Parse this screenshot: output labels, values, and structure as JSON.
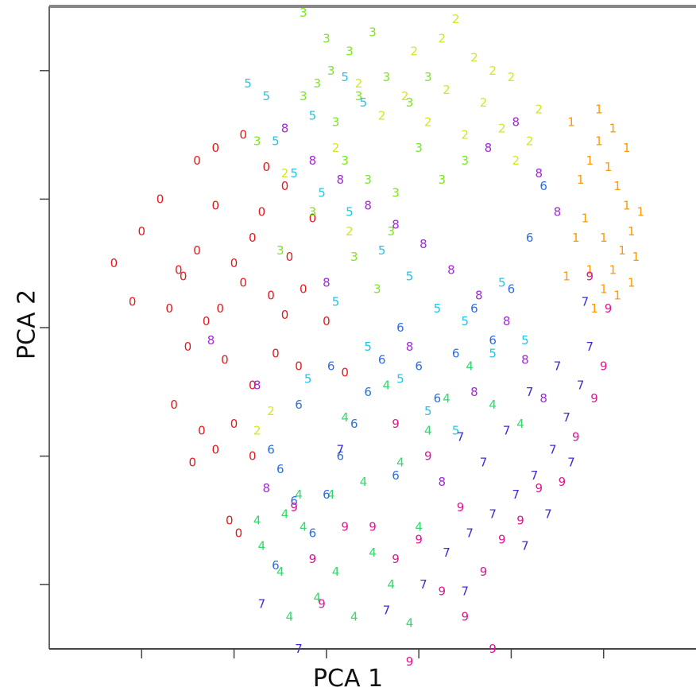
{
  "chart_data": {
    "type": "scatter",
    "xlabel": "PCA 1",
    "ylabel": "PCA 2",
    "xlim": [
      -7,
      7
    ],
    "ylim": [
      -5,
      5
    ],
    "x_ticks": [
      -5,
      -3,
      -1,
      1,
      3,
      5
    ],
    "y_ticks": [
      -4,
      -2,
      0,
      2,
      4
    ],
    "tick_labels_shown": false,
    "grid": false,
    "legend": "none",
    "marker": "digit glyph",
    "series": [
      {
        "name": "0",
        "color": "#e31a1c",
        "points": [
          [
            -5.6,
            1
          ],
          [
            -5,
            1.5
          ],
          [
            -4.6,
            2
          ],
          [
            -4.2,
            0.9
          ],
          [
            -3.8,
            1.2
          ],
          [
            -3.4,
            1.9
          ],
          [
            -3,
            1
          ],
          [
            -2.6,
            1.4
          ],
          [
            -2.2,
            0.5
          ],
          [
            -1.8,
            1.1
          ],
          [
            -1.5,
            0.6
          ],
          [
            -5.2,
            0.4
          ],
          [
            -4.4,
            0.3
          ],
          [
            -3.6,
            0.1
          ],
          [
            -2.8,
            0.7
          ],
          [
            -2.4,
            1.8
          ],
          [
            -3.2,
            -0.5
          ],
          [
            -4,
            -0.3
          ],
          [
            -4.3,
            -1.2
          ],
          [
            -3.7,
            -1.6
          ],
          [
            -3,
            -1.5
          ],
          [
            -2.6,
            -0.9
          ],
          [
            -2.1,
            -0.4
          ],
          [
            -1.6,
            -0.6
          ],
          [
            -3.8,
            2.6
          ],
          [
            -3.4,
            2.8
          ],
          [
            -2.8,
            3
          ],
          [
            -2.3,
            2.5
          ],
          [
            -1.9,
            2.2
          ],
          [
            -3.9,
            -2.1
          ],
          [
            -3.4,
            -1.9
          ],
          [
            -3.1,
            -3
          ],
          [
            -2.9,
            -3.2
          ],
          [
            -4.1,
            0.8
          ],
          [
            -1.9,
            0.2
          ],
          [
            -1.3,
            1.7
          ],
          [
            -1,
            0.1
          ],
          [
            -0.6,
            -0.7
          ],
          [
            -2.6,
            -2
          ],
          [
            -3.3,
            0.3
          ]
        ]
      },
      {
        "name": "1",
        "color": "#ff9900",
        "points": [
          [
            4.5,
            2.3
          ],
          [
            4.7,
            2.6
          ],
          [
            4.9,
            2.9
          ],
          [
            5.1,
            2.5
          ],
          [
            5.3,
            2.2
          ],
          [
            5.5,
            1.9
          ],
          [
            5.6,
            1.5
          ],
          [
            5.4,
            1.2
          ],
          [
            5.2,
            0.9
          ],
          [
            5,
            0.6
          ],
          [
            4.8,
            0.3
          ],
          [
            5.6,
            0.7
          ],
          [
            5.7,
            1.1
          ],
          [
            4.6,
            1.7
          ],
          [
            4.4,
            1.4
          ],
          [
            4.7,
            0.9
          ],
          [
            5.3,
            0.5
          ],
          [
            5.8,
            1.8
          ],
          [
            4.3,
            3.2
          ],
          [
            4.9,
            3.4
          ],
          [
            5.2,
            3.1
          ],
          [
            5,
            1.4
          ],
          [
            4.2,
            0.8
          ],
          [
            5.5,
            2.8
          ]
        ]
      },
      {
        "name": "2",
        "color": "#d4e71c",
        "points": [
          [
            -0.3,
            3.8
          ],
          [
            0.2,
            3.3
          ],
          [
            0.7,
            3.6
          ],
          [
            1.2,
            3.2
          ],
          [
            1.6,
            3.7
          ],
          [
            2,
            3
          ],
          [
            2.4,
            3.5
          ],
          [
            2.8,
            3.1
          ],
          [
            3.1,
            2.6
          ],
          [
            3.4,
            2.9
          ],
          [
            0.9,
            4.3
          ],
          [
            1.5,
            4.5
          ],
          [
            2.2,
            4.2
          ],
          [
            2.6,
            4
          ],
          [
            -0.8,
            2.8
          ],
          [
            -1.9,
            2.4
          ],
          [
            -2.2,
            -1.3
          ],
          [
            -2.5,
            -1.6
          ],
          [
            -0.5,
            1.5
          ],
          [
            3,
            3.9
          ],
          [
            1.8,
            4.8
          ],
          [
            3.6,
            3.4
          ]
        ]
      },
      {
        "name": "3",
        "color": "#7be81c",
        "points": [
          [
            -2.5,
            2.9
          ],
          [
            -1.5,
            4.9
          ],
          [
            -1,
            4.5
          ],
          [
            -0.5,
            4.3
          ],
          [
            0,
            4.6
          ],
          [
            -1.5,
            3.6
          ],
          [
            -1.2,
            3.8
          ],
          [
            -0.8,
            3.2
          ],
          [
            -0.3,
            3.6
          ],
          [
            0.3,
            3.9
          ],
          [
            0.8,
            3.5
          ],
          [
            1.2,
            3.9
          ],
          [
            -0.6,
            2.6
          ],
          [
            -0.1,
            2.3
          ],
          [
            0.5,
            2.1
          ],
          [
            1,
            2.8
          ],
          [
            -1.3,
            1.8
          ],
          [
            -0.4,
            1.1
          ],
          [
            0.4,
            1.5
          ],
          [
            1.5,
            2.3
          ],
          [
            -0.9,
            4
          ],
          [
            2,
            2.6
          ],
          [
            -2,
            1.2
          ],
          [
            0.1,
            0.6
          ]
        ]
      },
      {
        "name": "4",
        "color": "#33d96b",
        "points": [
          [
            -2.5,
            -3
          ],
          [
            -2.4,
            -3.4
          ],
          [
            -2,
            -3.8
          ],
          [
            -1.8,
            -4.5
          ],
          [
            -1.5,
            -3.1
          ],
          [
            -1.2,
            -4.2
          ],
          [
            -0.8,
            -3.8
          ],
          [
            -0.4,
            -4.5
          ],
          [
            0,
            -3.5
          ],
          [
            0.4,
            -4
          ],
          [
            0.8,
            -4.6
          ],
          [
            -1.6,
            -2.6
          ],
          [
            -0.9,
            -2.6
          ],
          [
            -0.2,
            -2.4
          ],
          [
            0.6,
            -2.1
          ],
          [
            1.2,
            -1.6
          ],
          [
            1.6,
            -1.1
          ],
          [
            2.1,
            -0.6
          ],
          [
            2.6,
            -1.2
          ],
          [
            3.2,
            -1.5
          ],
          [
            -0.6,
            -1.4
          ],
          [
            0.3,
            -0.9
          ],
          [
            -1.9,
            -2.9
          ],
          [
            1,
            -3.1
          ]
        ]
      },
      {
        "name": "5",
        "color": "#22c4e8",
        "points": [
          [
            -2.7,
            3.8
          ],
          [
            -2.3,
            3.6
          ],
          [
            -1.3,
            3.3
          ],
          [
            -0.6,
            3.9
          ],
          [
            -0.2,
            3.5
          ],
          [
            -2.1,
            2.9
          ],
          [
            -1.7,
            2.4
          ],
          [
            -1.1,
            2.1
          ],
          [
            -0.5,
            1.8
          ],
          [
            0.2,
            1.2
          ],
          [
            0.8,
            0.8
          ],
          [
            1.4,
            0.3
          ],
          [
            2,
            0.1
          ],
          [
            2.6,
            -0.4
          ],
          [
            -0.8,
            0.4
          ],
          [
            -0.1,
            -0.3
          ],
          [
            0.6,
            -0.8
          ],
          [
            1.2,
            -1.3
          ],
          [
            1.8,
            -1.6
          ],
          [
            -1.4,
            -0.8
          ],
          [
            2.8,
            0.7
          ],
          [
            3.3,
            -0.2
          ]
        ]
      },
      {
        "name": "6",
        "color": "#2e6fe0",
        "points": [
          [
            -2,
            -2.2
          ],
          [
            -1.7,
            -2.7
          ],
          [
            -1.3,
            -3.2
          ],
          [
            -1,
            -2.6
          ],
          [
            -0.7,
            -2
          ],
          [
            -0.4,
            -1.5
          ],
          [
            -0.1,
            -1
          ],
          [
            0.2,
            -0.5
          ],
          [
            0.6,
            0
          ],
          [
            1,
            -0.6
          ],
          [
            1.4,
            -1.1
          ],
          [
            1.8,
            -0.4
          ],
          [
            2.2,
            0.3
          ],
          [
            2.6,
            -0.2
          ],
          [
            3,
            0.6
          ],
          [
            3.4,
            1.4
          ],
          [
            3.7,
            2.2
          ],
          [
            -1.6,
            -1.2
          ],
          [
            -2.2,
            -1.9
          ],
          [
            -0.9,
            -0.6
          ],
          [
            -2.1,
            -3.7
          ],
          [
            0.5,
            -2.3
          ]
        ]
      },
      {
        "name": "7",
        "color": "#3b2cd6",
        "points": [
          [
            -2.4,
            -4.3
          ],
          [
            -1.6,
            -5
          ],
          [
            0.3,
            -4.4
          ],
          [
            1.1,
            -4
          ],
          [
            1.6,
            -3.5
          ],
          [
            2.1,
            -3.2
          ],
          [
            2.6,
            -2.9
          ],
          [
            3.1,
            -2.6
          ],
          [
            3.5,
            -2.3
          ],
          [
            3.9,
            -1.9
          ],
          [
            4.2,
            -1.4
          ],
          [
            4.5,
            -0.9
          ],
          [
            4.7,
            -0.3
          ],
          [
            4.6,
            0.4
          ],
          [
            3.8,
            -2.9
          ],
          [
            4.3,
            -2.1
          ],
          [
            2.9,
            -1.6
          ],
          [
            3.4,
            -1
          ],
          [
            2.4,
            -2.1
          ],
          [
            1.9,
            -1.7
          ],
          [
            4,
            -0.6
          ],
          [
            3.3,
            -3.4
          ],
          [
            2,
            -4.1
          ],
          [
            -0.7,
            -1.9
          ]
        ]
      },
      {
        "name": "8",
        "color": "#a329d6",
        "points": [
          [
            -1.9,
            3.1
          ],
          [
            -1.3,
            2.6
          ],
          [
            -0.7,
            2.3
          ],
          [
            -0.1,
            1.9
          ],
          [
            0.5,
            1.6
          ],
          [
            1.1,
            1.3
          ],
          [
            1.7,
            0.9
          ],
          [
            2.3,
            0.5
          ],
          [
            2.9,
            0.1
          ],
          [
            3.3,
            -0.5
          ],
          [
            3.7,
            -1.1
          ],
          [
            2.5,
            2.8
          ],
          [
            3.1,
            3.2
          ],
          [
            3.6,
            2.4
          ],
          [
            4,
            1.8
          ],
          [
            -2.5,
            -0.9
          ],
          [
            -3.5,
            -0.2
          ],
          [
            -2.3,
            -2.5
          ],
          [
            -1,
            0.7
          ],
          [
            0.8,
            -0.3
          ],
          [
            1.5,
            -2.4
          ],
          [
            2.2,
            -1
          ]
        ]
      },
      {
        "name": "9",
        "color": "#e0168f",
        "points": [
          [
            -1.7,
            -2.8
          ],
          [
            -1.3,
            -3.6
          ],
          [
            -1.1,
            -4.3
          ],
          [
            -0.6,
            -3.1
          ],
          [
            0,
            -3.1
          ],
          [
            0.5,
            -3.6
          ],
          [
            1,
            -3.3
          ],
          [
            1.5,
            -4.1
          ],
          [
            2,
            -4.5
          ],
          [
            2.4,
            -3.8
          ],
          [
            2.8,
            -3.3
          ],
          [
            3.2,
            -3
          ],
          [
            3.6,
            -2.5
          ],
          [
            4.1,
            -2.4
          ],
          [
            4.4,
            -1.7
          ],
          [
            4.8,
            -1.1
          ],
          [
            5,
            -0.6
          ],
          [
            5.1,
            0.3
          ],
          [
            4.7,
            0.8
          ],
          [
            1.2,
            -2
          ],
          [
            0.5,
            -1.5
          ],
          [
            1.9,
            -2.8
          ],
          [
            0.8,
            -5.2
          ],
          [
            2.6,
            -5
          ]
        ]
      }
    ]
  }
}
